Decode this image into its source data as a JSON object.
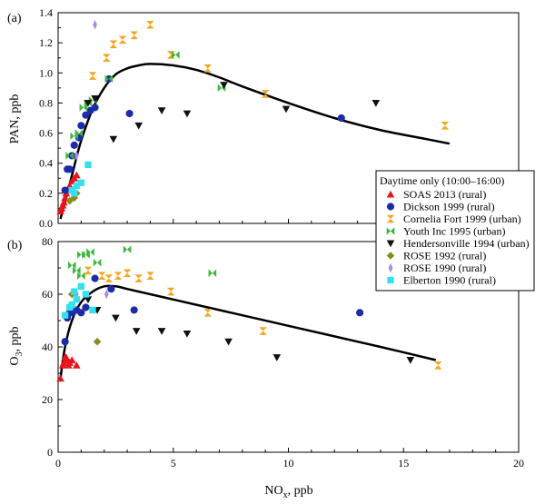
{
  "figure": {
    "legend_title": "Daytime only (10:00–16:00)",
    "xlabel_main": "NO",
    "xlabel_sub": "x",
    "xlabel_unit": ", ppb",
    "xlim": [
      0,
      20
    ],
    "xticks": [
      0,
      5,
      10,
      15,
      20
    ]
  },
  "series": [
    {
      "name": "SOAS 2013 (rural)",
      "marker": "triangle-up",
      "color": "#e8141c"
    },
    {
      "name": "Dickson 1999 (rural)",
      "marker": "circle",
      "color": "#1c2ca8"
    },
    {
      "name": "Cornelia Fort 1999 (urban)",
      "marker": "hourglass",
      "color": "#f5a623"
    },
    {
      "name": "Youth Inc 1995 (urban)",
      "marker": "bowtie",
      "color": "#3cb83c"
    },
    {
      "name": "Hendersonville 1994 (urban)",
      "marker": "triangle-down",
      "color": "#111111"
    },
    {
      "name": "ROSE 1992 (rural)",
      "marker": "diamond",
      "color": "#8e8a1e"
    },
    {
      "name": "ROSE 1990 (rural)",
      "marker": "diamond-narrow",
      "color": "#a98ae0"
    },
    {
      "name": "Elberton 1990 (rural)",
      "marker": "square",
      "color": "#33e0ee"
    }
  ],
  "chart_data": [
    {
      "panel_label": "(a)",
      "type": "scatter",
      "ylabel": "PAN, ppb",
      "ylim": [
        0,
        1.4
      ],
      "yticks": [
        0.0,
        0.2,
        0.4,
        0.6,
        0.8,
        1.0,
        1.2,
        1.4
      ],
      "ytick_labels": [
        "0.0",
        "0.2",
        "0.4",
        "0.6",
        "0.8",
        "1.0",
        "1.2",
        "1.4"
      ],
      "points": {
        "SOAS 2013 (rural)": [
          [
            0.1,
            0.08
          ],
          [
            0.15,
            0.1
          ],
          [
            0.2,
            0.12
          ],
          [
            0.25,
            0.14
          ],
          [
            0.3,
            0.17
          ],
          [
            0.35,
            0.2
          ],
          [
            0.4,
            0.22
          ],
          [
            0.5,
            0.25
          ],
          [
            0.6,
            0.28
          ],
          [
            0.7,
            0.3
          ],
          [
            0.8,
            0.32
          ]
        ],
        "Dickson 1999 (rural)": [
          [
            0.3,
            0.22
          ],
          [
            0.4,
            0.36
          ],
          [
            0.5,
            0.36
          ],
          [
            0.6,
            0.45
          ],
          [
            0.7,
            0.52
          ],
          [
            0.9,
            0.57
          ],
          [
            1.0,
            0.65
          ],
          [
            1.2,
            0.72
          ],
          [
            1.4,
            0.75
          ],
          [
            1.6,
            0.77
          ],
          [
            2.2,
            0.96
          ],
          [
            3.1,
            0.73
          ],
          [
            12.3,
            0.7
          ]
        ],
        "Cornelia Fort 1999 (urban)": [
          [
            1.5,
            0.98
          ],
          [
            2.1,
            1.1
          ],
          [
            2.4,
            1.19
          ],
          [
            2.8,
            1.22
          ],
          [
            3.3,
            1.25
          ],
          [
            4.0,
            1.32
          ],
          [
            4.9,
            1.12
          ],
          [
            6.5,
            1.03
          ],
          [
            9.0,
            0.86
          ],
          [
            16.8,
            0.65
          ]
        ],
        "Youth Inc 1995 (urban)": [
          [
            0.5,
            0.45
          ],
          [
            0.7,
            0.58
          ],
          [
            0.9,
            0.6
          ],
          [
            1.1,
            0.77
          ],
          [
            1.3,
            0.8
          ],
          [
            1.5,
            0.82
          ],
          [
            2.2,
            0.96
          ],
          [
            5.1,
            1.12
          ],
          [
            7.1,
            0.9
          ]
        ],
        "Hendersonville 1994 (urban)": [
          [
            1.3,
            0.8
          ],
          [
            1.6,
            0.83
          ],
          [
            2.4,
            0.56
          ],
          [
            3.5,
            0.65
          ],
          [
            4.5,
            0.75
          ],
          [
            5.6,
            0.73
          ],
          [
            7.2,
            0.92
          ],
          [
            9.9,
            0.76
          ],
          [
            13.8,
            0.8
          ]
        ],
        "ROSE 1992 (rural)": [
          [
            0.5,
            0.15
          ],
          [
            0.7,
            0.17
          ],
          [
            0.8,
            0.2
          ]
        ],
        "ROSE 1990 (rural)": [
          [
            1.6,
            1.32
          ],
          [
            0.8,
            0.45
          ]
        ],
        "Elberton 1990 (rural)": [
          [
            0.6,
            0.22
          ],
          [
            0.8,
            0.25
          ],
          [
            1.0,
            0.27
          ],
          [
            1.3,
            0.39
          ],
          [
            0.7,
            0.2
          ]
        ]
      },
      "fit": [
        [
          0.1,
          0.03
        ],
        [
          0.4,
          0.2
        ],
        [
          0.7,
          0.38
        ],
        [
          1.0,
          0.55
        ],
        [
          1.5,
          0.76
        ],
        [
          2.0,
          0.9
        ],
        [
          2.5,
          0.99
        ],
        [
          3.0,
          1.03
        ],
        [
          3.5,
          1.05
        ],
        [
          4.0,
          1.06
        ],
        [
          5.0,
          1.05
        ],
        [
          6.0,
          1.02
        ],
        [
          7.0,
          0.97
        ],
        [
          8.0,
          0.91
        ],
        [
          10.0,
          0.8
        ],
        [
          12.0,
          0.7
        ],
        [
          14.0,
          0.62
        ],
        [
          16.0,
          0.56
        ],
        [
          17.0,
          0.53
        ]
      ]
    },
    {
      "panel_label": "(b)",
      "type": "scatter",
      "ylabel_main": "O",
      "ylabel_sub": "3",
      "ylabel_unit": ", ppb",
      "ylim": [
        0,
        80
      ],
      "yticks": [
        0,
        20,
        40,
        60,
        80
      ],
      "ytick_labels": [
        "0",
        "20",
        "40",
        "60",
        "80"
      ],
      "points": {
        "SOAS 2013 (rural)": [
          [
            0.1,
            28
          ],
          [
            0.2,
            33
          ],
          [
            0.25,
            34
          ],
          [
            0.3,
            36
          ],
          [
            0.35,
            36
          ],
          [
            0.4,
            35
          ],
          [
            0.45,
            33
          ],
          [
            0.5,
            34
          ],
          [
            0.6,
            35
          ],
          [
            0.8,
            33
          ]
        ],
        "Dickson 1999 (rural)": [
          [
            0.3,
            42
          ],
          [
            0.4,
            51
          ],
          [
            0.5,
            53
          ],
          [
            0.6,
            53
          ],
          [
            0.8,
            54
          ],
          [
            1.0,
            53
          ],
          [
            1.2,
            55
          ],
          [
            1.6,
            66
          ],
          [
            2.3,
            62
          ],
          [
            3.3,
            54
          ],
          [
            13.1,
            53
          ]
        ],
        "Cornelia Fort 1999 (urban)": [
          [
            1.3,
            69
          ],
          [
            1.9,
            67
          ],
          [
            2.2,
            66
          ],
          [
            2.6,
            67
          ],
          [
            3.0,
            68
          ],
          [
            3.5,
            66
          ],
          [
            4.0,
            67
          ],
          [
            4.9,
            61
          ],
          [
            6.5,
            53
          ],
          [
            8.9,
            46
          ],
          [
            16.5,
            33
          ]
        ],
        "Youth Inc 1995 (urban)": [
          [
            0.6,
            71
          ],
          [
            0.8,
            69
          ],
          [
            1.0,
            75
          ],
          [
            1.2,
            75
          ],
          [
            1.4,
            76
          ],
          [
            1.7,
            72
          ],
          [
            1.0,
            67
          ],
          [
            3.0,
            77
          ],
          [
            6.7,
            68
          ]
        ],
        "Hendersonville 1994 (urban)": [
          [
            1.3,
            58
          ],
          [
            1.7,
            54
          ],
          [
            2.5,
            51
          ],
          [
            3.4,
            46
          ],
          [
            4.5,
            46
          ],
          [
            5.6,
            45
          ],
          [
            7.4,
            42
          ],
          [
            9.5,
            36
          ],
          [
            15.3,
            35
          ]
        ],
        "ROSE 1992 (rural)": [
          [
            0.6,
            60
          ],
          [
            1.7,
            42
          ]
        ],
        "ROSE 1990 (rural)": [
          [
            0.8,
            60
          ],
          [
            2.1,
            60
          ]
        ],
        "Elberton 1990 (rural)": [
          [
            0.3,
            52
          ],
          [
            0.5,
            55
          ],
          [
            0.6,
            56
          ],
          [
            0.8,
            58
          ],
          [
            1.0,
            63
          ],
          [
            1.2,
            60
          ],
          [
            1.5,
            54
          ],
          [
            0.7,
            61
          ]
        ]
      },
      "fit": [
        [
          0.1,
          28
        ],
        [
          0.3,
          40
        ],
        [
          0.6,
          50
        ],
        [
          1.0,
          57
        ],
        [
          1.5,
          61
        ],
        [
          2.0,
          63
        ],
        [
          2.5,
          63
        ],
        [
          3.0,
          62
        ],
        [
          3.5,
          61
        ],
        [
          4.0,
          60
        ],
        [
          5.0,
          58
        ],
        [
          6.0,
          56
        ],
        [
          7.0,
          54
        ],
        [
          8.0,
          52
        ],
        [
          10.0,
          48
        ],
        [
          12.0,
          44
        ],
        [
          14.0,
          40
        ],
        [
          16.4,
          35
        ]
      ]
    }
  ]
}
